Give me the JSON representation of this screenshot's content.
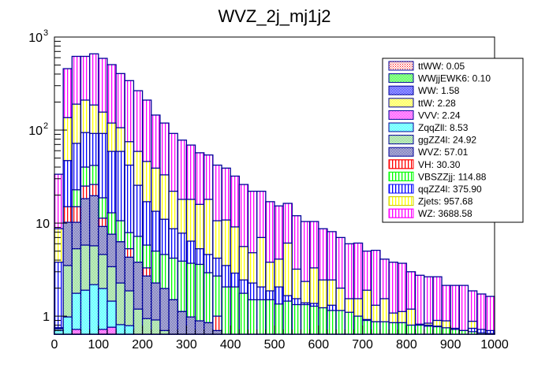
{
  "chart_data": {
    "type": "bar",
    "subtype": "stacked-histogram",
    "title": "WVZ_2j_mj1j2",
    "xlabel": "",
    "ylabel": "",
    "xlim": [
      0,
      1000
    ],
    "ylim": [
      0.64,
      1000
    ],
    "yscale": "log",
    "bin_width": 20,
    "n_bins": 50,
    "x_ticks": [
      "0",
      "100",
      "200",
      "300",
      "400",
      "500",
      "600",
      "700",
      "800",
      "900",
      "1000"
    ],
    "x_tick_values": [
      0,
      100,
      200,
      300,
      400,
      500,
      600,
      700,
      800,
      900,
      1000
    ],
    "y_ticks": [
      {
        "value": 1,
        "base": "1",
        "exp": ""
      },
      {
        "value": 10,
        "base": "10",
        "exp": ""
      },
      {
        "value": 100,
        "base": "10",
        "exp": "2"
      },
      {
        "value": 1000,
        "base": "10",
        "exp": "3"
      }
    ],
    "legend_position": "top-right",
    "note": "values are cumulative stack tops (data units) per 20-unit bin; null = not visible above axis minimum",
    "series": [
      {
        "name": "ttWW",
        "legend": "ttWW: 0.05",
        "total": 0.05,
        "color": "#ff0000",
        "pattern": "dots",
        "stack_tops": []
      },
      {
        "name": "WWjjEWK6",
        "legend": "WWjjEWK6: 0.10",
        "total": 0.1,
        "color": "#00ff00",
        "pattern": "dots",
        "stack_tops": []
      },
      {
        "name": "WW",
        "legend": "WW: 1.58",
        "total": 1.58,
        "color": "#0000ff",
        "pattern": "dots",
        "stack_tops": []
      },
      {
        "name": "ttW",
        "legend": "ttW: 2.28",
        "total": 2.28,
        "color": "#ffff00",
        "pattern": "dots",
        "stack_tops": []
      },
      {
        "name": "VVV",
        "legend": "VVV: 2.24",
        "total": 2.24,
        "color": "#ff00ff",
        "pattern": "dots",
        "stack_tops": [
          null,
          null,
          0.72,
          null,
          null,
          0.72,
          0.76,
          null,
          null,
          null,
          null,
          null,
          null,
          null,
          null,
          null,
          null,
          null,
          null,
          null,
          null,
          null,
          null,
          null,
          null,
          null,
          null,
          null,
          null,
          null,
          null,
          null,
          null,
          null,
          null,
          null,
          null,
          null,
          null,
          null,
          null,
          null,
          null,
          null,
          null,
          null,
          null,
          null,
          null,
          null
        ]
      },
      {
        "name": "ZqqZll",
        "legend": "ZqqZll: 8.53",
        "total": 8.53,
        "color": "#00ffff",
        "pattern": "dots",
        "stack_tops": [
          0.7,
          0.98,
          1.76,
          1.9,
          2.18,
          1.98,
          1.45,
          0.81,
          0.79,
          null,
          null,
          null,
          null,
          null,
          null,
          null,
          null,
          null,
          null,
          null,
          null,
          null,
          null,
          null,
          null,
          null,
          null,
          null,
          null,
          null,
          null,
          null,
          null,
          null,
          null,
          null,
          null,
          null,
          null,
          null,
          null,
          null,
          null,
          null,
          null,
          null,
          null,
          null,
          null,
          null
        ]
      },
      {
        "name": "ggZZ4l",
        "legend": "ggZZ4l: 24.92",
        "total": 24.92,
        "color": "#66cc66",
        "pattern": "dots",
        "stack_tops": [
          0.73,
          3.5,
          5.3,
          5.8,
          5.7,
          4.6,
          3.4,
          2.27,
          1.87,
          1.19,
          0.94,
          0.91,
          0.7,
          null,
          null,
          null,
          null,
          null,
          null,
          null,
          null,
          null,
          null,
          null,
          null,
          null,
          null,
          null,
          null,
          null,
          null,
          null,
          null,
          null,
          null,
          null,
          null,
          null,
          null,
          null,
          null,
          null,
          null,
          null,
          null,
          null,
          null,
          null,
          null,
          null
        ]
      },
      {
        "name": "WVZ",
        "legend": "WVZ: 57.01",
        "total": 57.01,
        "color": "#333399",
        "pattern": "dots",
        "stack_tops": [
          0.75,
          10.2,
          10.2,
          18.3,
          19.7,
          9.2,
          7.6,
          6.3,
          4.3,
          3.8,
          2.7,
          2.27,
          1.98,
          1.5,
          1.12,
          0.98,
          0.89,
          0.85,
          0.7,
          null,
          null,
          null,
          null,
          null,
          null,
          null,
          null,
          null,
          null,
          null,
          null,
          null,
          null,
          null,
          null,
          null,
          null,
          null,
          null,
          null,
          null,
          null,
          null,
          null,
          null,
          null,
          null,
          null,
          null,
          null
        ]
      },
      {
        "name": "VH",
        "legend": "VH: 30.30",
        "total": 30.3,
        "color": "#ff0000",
        "pattern": "vlines",
        "stack_tops": [
          0.75,
          15,
          15,
          25,
          26,
          11.3,
          7.6,
          6.3,
          5.3,
          3.8,
          3.3,
          2.27,
          1.98,
          1.5,
          1.12,
          0.98,
          0.89,
          0.85,
          1.0,
          null,
          null,
          null,
          null,
          null,
          null,
          null,
          null,
          null,
          null,
          null,
          null,
          null,
          null,
          null,
          null,
          null,
          null,
          null,
          null,
          null,
          null,
          null,
          null,
          null,
          null,
          null,
          null,
          null,
          null,
          null
        ]
      },
      {
        "name": "VBSZZjj",
        "legend": "VBSZZjj: 114.88",
        "total": 114.88,
        "color": "#00ff00",
        "pattern": "vlines",
        "stack_tops": [
          0.73,
          12.9,
          22.8,
          40,
          41.7,
          18.7,
          12.9,
          10.6,
          7.9,
          7.2,
          5.8,
          5.0,
          4.6,
          4.2,
          3.9,
          3.7,
          3.6,
          2.93,
          2.7,
          2.06,
          2.06,
          1.76,
          1.5,
          1.5,
          1.5,
          1.35,
          1.45,
          1.33,
          1.33,
          1.28,
          1.23,
          1.15,
          1.15,
          1.1,
          1.0,
          0.9,
          0.87,
          0.87,
          0.85,
          0.85,
          0.8,
          0.8,
          0.78,
          0.77,
          0.75,
          0.72,
          0.7,
          0.68,
          0.66,
          0.65
        ]
      },
      {
        "name": "qqZZ4l",
        "legend": "qqZZ4l: 375.90",
        "total": 375.9,
        "color": "#0000ff",
        "pattern": "vlines",
        "stack_tops": [
          3.8,
          47,
          72,
          94,
          92,
          92,
          59,
          59,
          42,
          25.5,
          17,
          13.4,
          11,
          8.7,
          7.8,
          6.4,
          5.3,
          4.6,
          4.2,
          3.5,
          2.9,
          2.45,
          2.27,
          2.06,
          1.87,
          2.06,
          1.66,
          1.54,
          1.39,
          1.37,
          1.19,
          1.31,
          1.14,
          1.0,
          0.96,
          0.92,
          0.87,
          0.85,
          0.85,
          0.85,
          0.8,
          0.82,
          0.8,
          0.78,
          0.74,
          0.74,
          0.7,
          0.74,
          0.72,
          0.7
        ]
      },
      {
        "name": "Zjets",
        "legend": "Zjets: 957.68",
        "total": 957.68,
        "color": "#ffff00",
        "pattern": "vlines",
        "stack_tops": [
          8.7,
          136,
          190,
          210,
          186,
          156,
          119,
          106,
          75,
          59,
          46,
          39,
          33,
          22,
          18,
          18,
          15.9,
          18,
          10.6,
          10.8,
          9.1,
          5.6,
          4.8,
          7.0,
          3.8,
          4.1,
          6.1,
          3.2,
          2.36,
          3.3,
          2.45,
          2.45,
          2.0,
          1.54,
          1.54,
          1.9,
          1.31,
          1.54,
          1.08,
          1.12,
          1.19,
          0.73,
          0.84,
          0.9,
          0.89,
          0.73,
          0.66,
          0.88,
          0.7,
          0.66
        ]
      },
      {
        "name": "WZ",
        "legend": "WZ: 3688.58",
        "total": 3688.58,
        "color": "#ff00ff",
        "pattern": "vlines",
        "stack_tops": [
          33.5,
          457,
          620,
          620,
          660,
          590,
          505,
          405,
          340,
          265,
          210,
          145,
          119,
          92,
          78,
          69,
          57,
          54,
          42,
          39,
          32,
          26,
          22,
          22,
          17,
          15.3,
          16.3,
          12,
          10.4,
          10.4,
          8.7,
          8.1,
          7.0,
          6.0,
          6.1,
          5.0,
          5.1,
          4.1,
          3.8,
          3.7,
          3.0,
          2.75,
          2.65,
          2.65,
          2.14,
          2.14,
          2.14,
          1.87,
          1.73,
          1.63
        ]
      }
    ]
  }
}
